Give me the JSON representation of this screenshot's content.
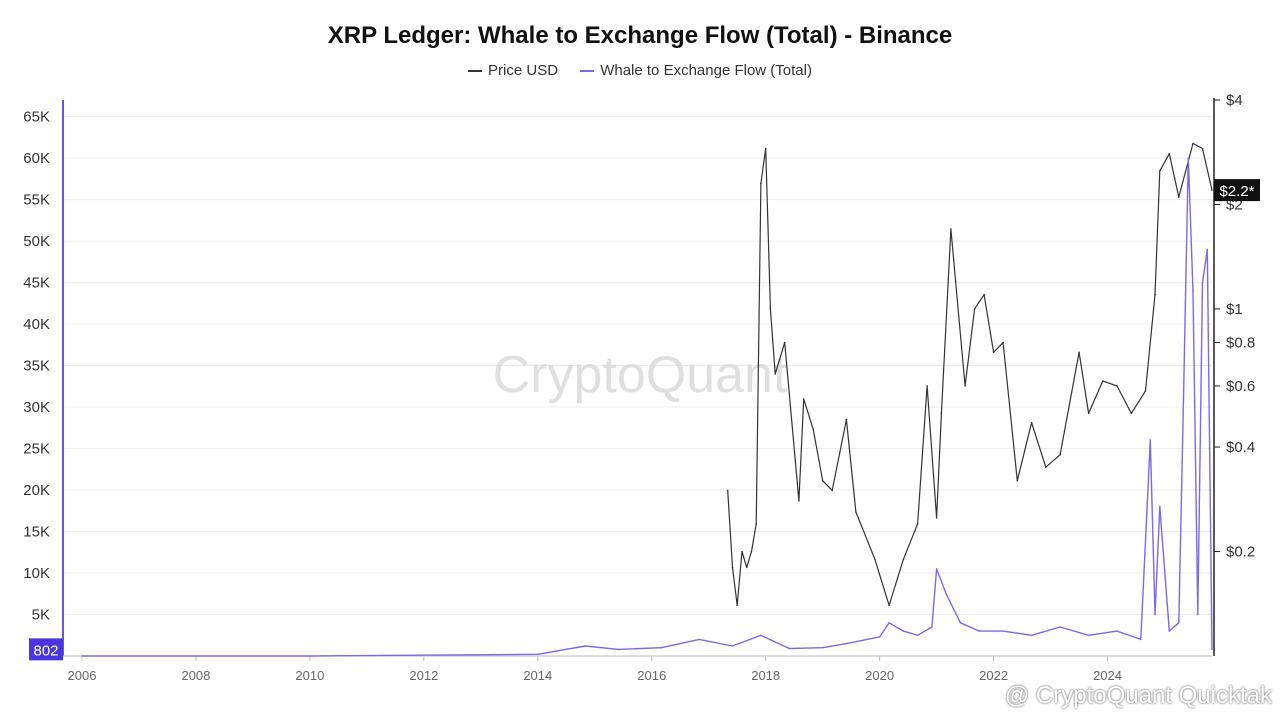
{
  "chart_data": {
    "type": "line",
    "title": "XRP Ledger: Whale to Exchange Flow (Total) - Binance",
    "legend": [
      {
        "name": "Price USD",
        "color": "#333333"
      },
      {
        "name": "Whale to Exchange Flow (Total)",
        "color": "#7b68ee"
      }
    ],
    "legend_position": "top-center",
    "x_ticks": [
      "2006",
      "2008",
      "2010",
      "2012",
      "2014",
      "2016",
      "2018",
      "2020",
      "2022",
      "2024"
    ],
    "xlim": [
      "2005-09",
      "2025-11"
    ],
    "y_left": {
      "ticks": [
        "5K",
        "10K",
        "15K",
        "20K",
        "25K",
        "30K",
        "35K",
        "40K",
        "45K",
        "50K",
        "55K",
        "60K",
        "65K"
      ],
      "ylim": [
        0,
        67000
      ],
      "current_label": "802"
    },
    "y_right": {
      "scale": "log",
      "ticks": [
        {
          "label": "$0.2",
          "value": 0.2
        },
        {
          "label": "$0.4",
          "value": 0.4
        },
        {
          "label": "$0.6",
          "value": 0.6
        },
        {
          "label": "$0.8",
          "value": 0.8
        },
        {
          "label": "$1",
          "value": 1
        },
        {
          "label": "$2",
          "value": 2
        },
        {
          "label": "$4",
          "value": 4
        }
      ],
      "ylim": [
        0.1,
        4
      ],
      "current_label": "$2.2*"
    },
    "grid": true,
    "series": [
      {
        "name": "Price USD",
        "axis": "right",
        "x": [
          "2017-05",
          "2017-06",
          "2017-07",
          "2017-08",
          "2017-09",
          "2017-10",
          "2017-11",
          "2017-12",
          "2018-01",
          "2018-02",
          "2018-03",
          "2018-05",
          "2018-08",
          "2018-09",
          "2018-11",
          "2019-01",
          "2019-03",
          "2019-06",
          "2019-08",
          "2019-12",
          "2020-03",
          "2020-06",
          "2020-09",
          "2020-11",
          "2021-01",
          "2021-02",
          "2021-04",
          "2021-05",
          "2021-07",
          "2021-09",
          "2021-11",
          "2022-01",
          "2022-03",
          "2022-06",
          "2022-09",
          "2022-12",
          "2023-03",
          "2023-07",
          "2023-09",
          "2023-12",
          "2024-03",
          "2024-06",
          "2024-09",
          "2024-11",
          "2024-12",
          "2025-02",
          "2025-04",
          "2025-07",
          "2025-09",
          "2025-11"
        ],
        "values": [
          0.3,
          0.18,
          0.14,
          0.2,
          0.18,
          0.2,
          0.24,
          2.3,
          2.9,
          1.0,
          0.65,
          0.8,
          0.28,
          0.55,
          0.45,
          0.32,
          0.3,
          0.48,
          0.26,
          0.19,
          0.14,
          0.19,
          0.24,
          0.6,
          0.25,
          0.5,
          1.7,
          1.2,
          0.6,
          1.0,
          1.1,
          0.75,
          0.8,
          0.32,
          0.47,
          0.35,
          0.38,
          0.75,
          0.5,
          0.62,
          0.6,
          0.5,
          0.58,
          1.1,
          2.5,
          2.8,
          2.1,
          3.0,
          2.9,
          2.2
        ]
      },
      {
        "name": "Whale to Exchange Flow (Total)",
        "axis": "left",
        "x": [
          "2006-01",
          "2010-01",
          "2014-01",
          "2014-11",
          "2015-06",
          "2016-03",
          "2016-11",
          "2017-06",
          "2017-12",
          "2018-06",
          "2019-01",
          "2019-06",
          "2020-01",
          "2020-03",
          "2020-06",
          "2020-09",
          "2020-12",
          "2021-01",
          "2021-03",
          "2021-06",
          "2021-10",
          "2022-03",
          "2022-09",
          "2023-03",
          "2023-09",
          "2024-03",
          "2024-08",
          "2024-10",
          "2024-11",
          "2024-12",
          "2025-02",
          "2025-04",
          "2025-05",
          "2025-06",
          "2025-07",
          "2025-08",
          "2025-09",
          "2025-10",
          "2025-11"
        ],
        "values": [
          0,
          0,
          200,
          1200,
          800,
          1000,
          2000,
          1200,
          2500,
          900,
          1000,
          1500,
          2300,
          4000,
          3000,
          2500,
          3500,
          10500,
          7500,
          4000,
          3000,
          3000,
          2500,
          3500,
          2500,
          3000,
          2000,
          26000,
          5000,
          18000,
          3000,
          4000,
          31000,
          60000,
          44000,
          5000,
          45000,
          49000,
          802
        ]
      }
    ]
  },
  "watermark": "CryptoQuant",
  "footer_credit": "@ CryptoQuant Quicktak"
}
